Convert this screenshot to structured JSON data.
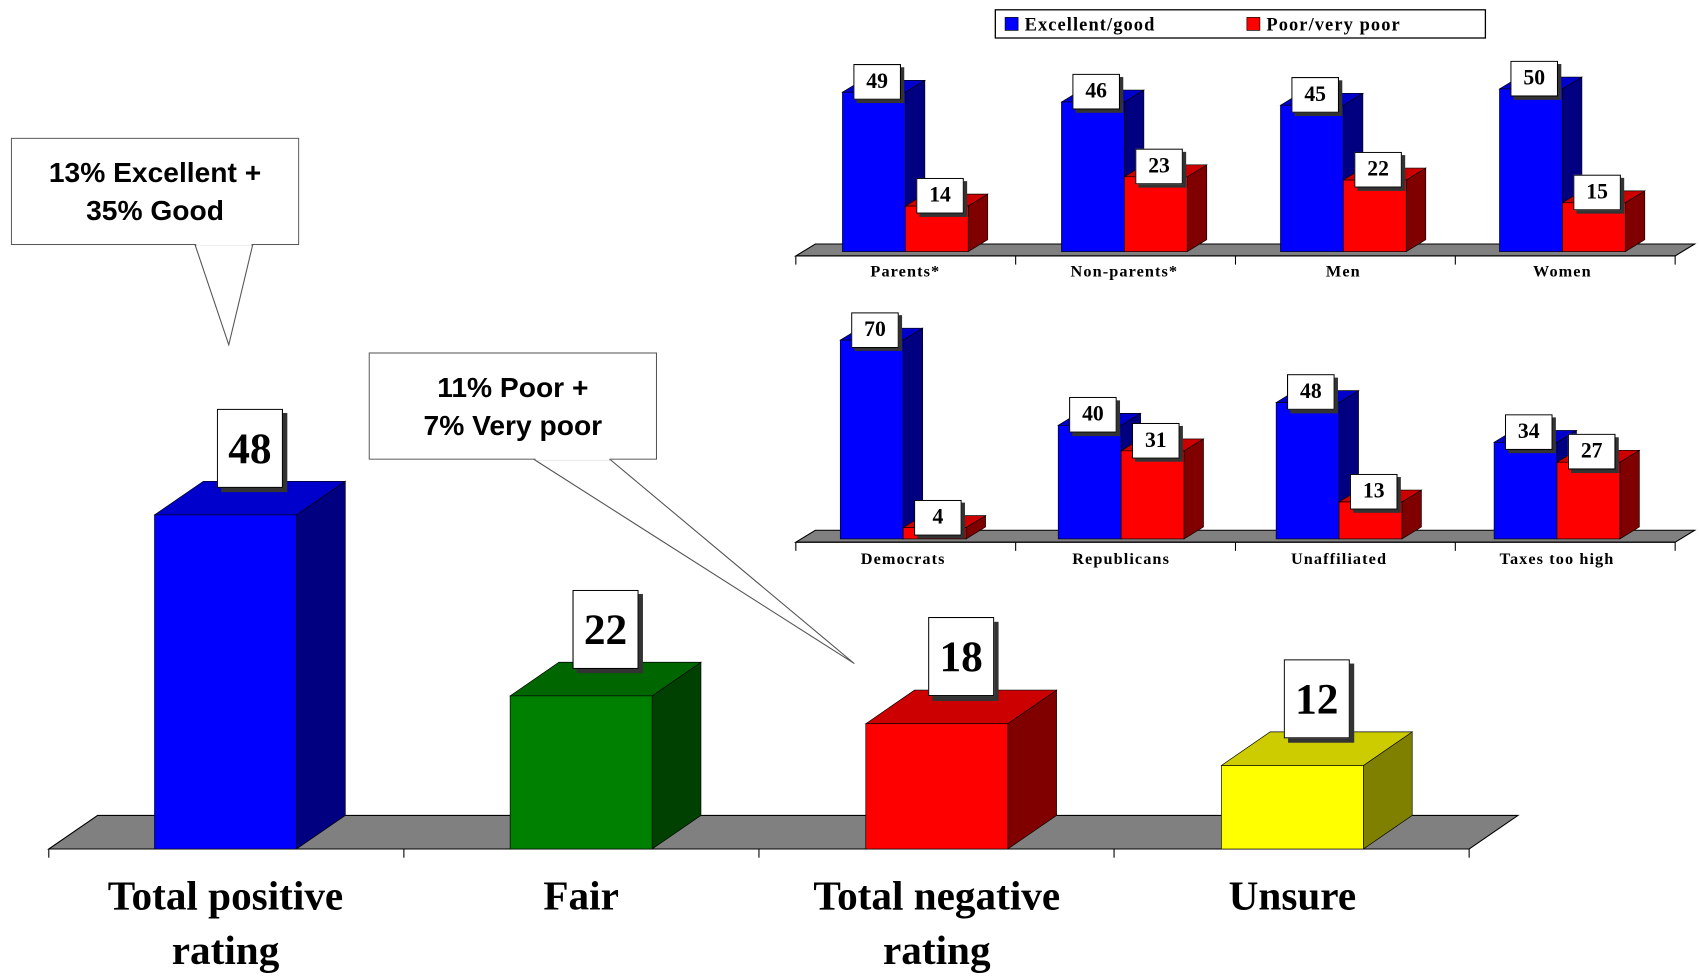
{
  "chart_data": [
    {
      "type": "bar",
      "categories": [
        "Total positive\nrating",
        "Fair",
        "Total negative\nrating",
        "Unsure"
      ],
      "values": [
        48,
        22,
        18,
        12
      ],
      "colors": [
        "#0000ff",
        "#008000",
        "#ff0000",
        "#ffff00"
      ],
      "annotations": [
        "13% Excellent +\n35% Good",
        "11% Poor +\n7% Very poor"
      ]
    },
    {
      "type": "grouped_bar",
      "categories": [
        "Parents*",
        "Non-parents*",
        "Men",
        "Women"
      ],
      "series": [
        {
          "name": "Excellent/good",
          "color": "#0000ff",
          "values": [
            49,
            46,
            45,
            50
          ]
        },
        {
          "name": "Poor/very poor",
          "color": "#ff0000",
          "values": [
            14,
            23,
            22,
            15
          ]
        }
      ],
      "legend": "top"
    },
    {
      "type": "grouped_bar",
      "categories": [
        "Democrats",
        "Republicans",
        "Unaffiliated",
        "Taxes too high"
      ],
      "series": [
        {
          "color": "#0000ff",
          "values": [
            70,
            40,
            48,
            34
          ]
        },
        {
          "color": "#ff0000",
          "values": [
            4,
            31,
            13,
            27
          ]
        }
      ]
    }
  ]
}
